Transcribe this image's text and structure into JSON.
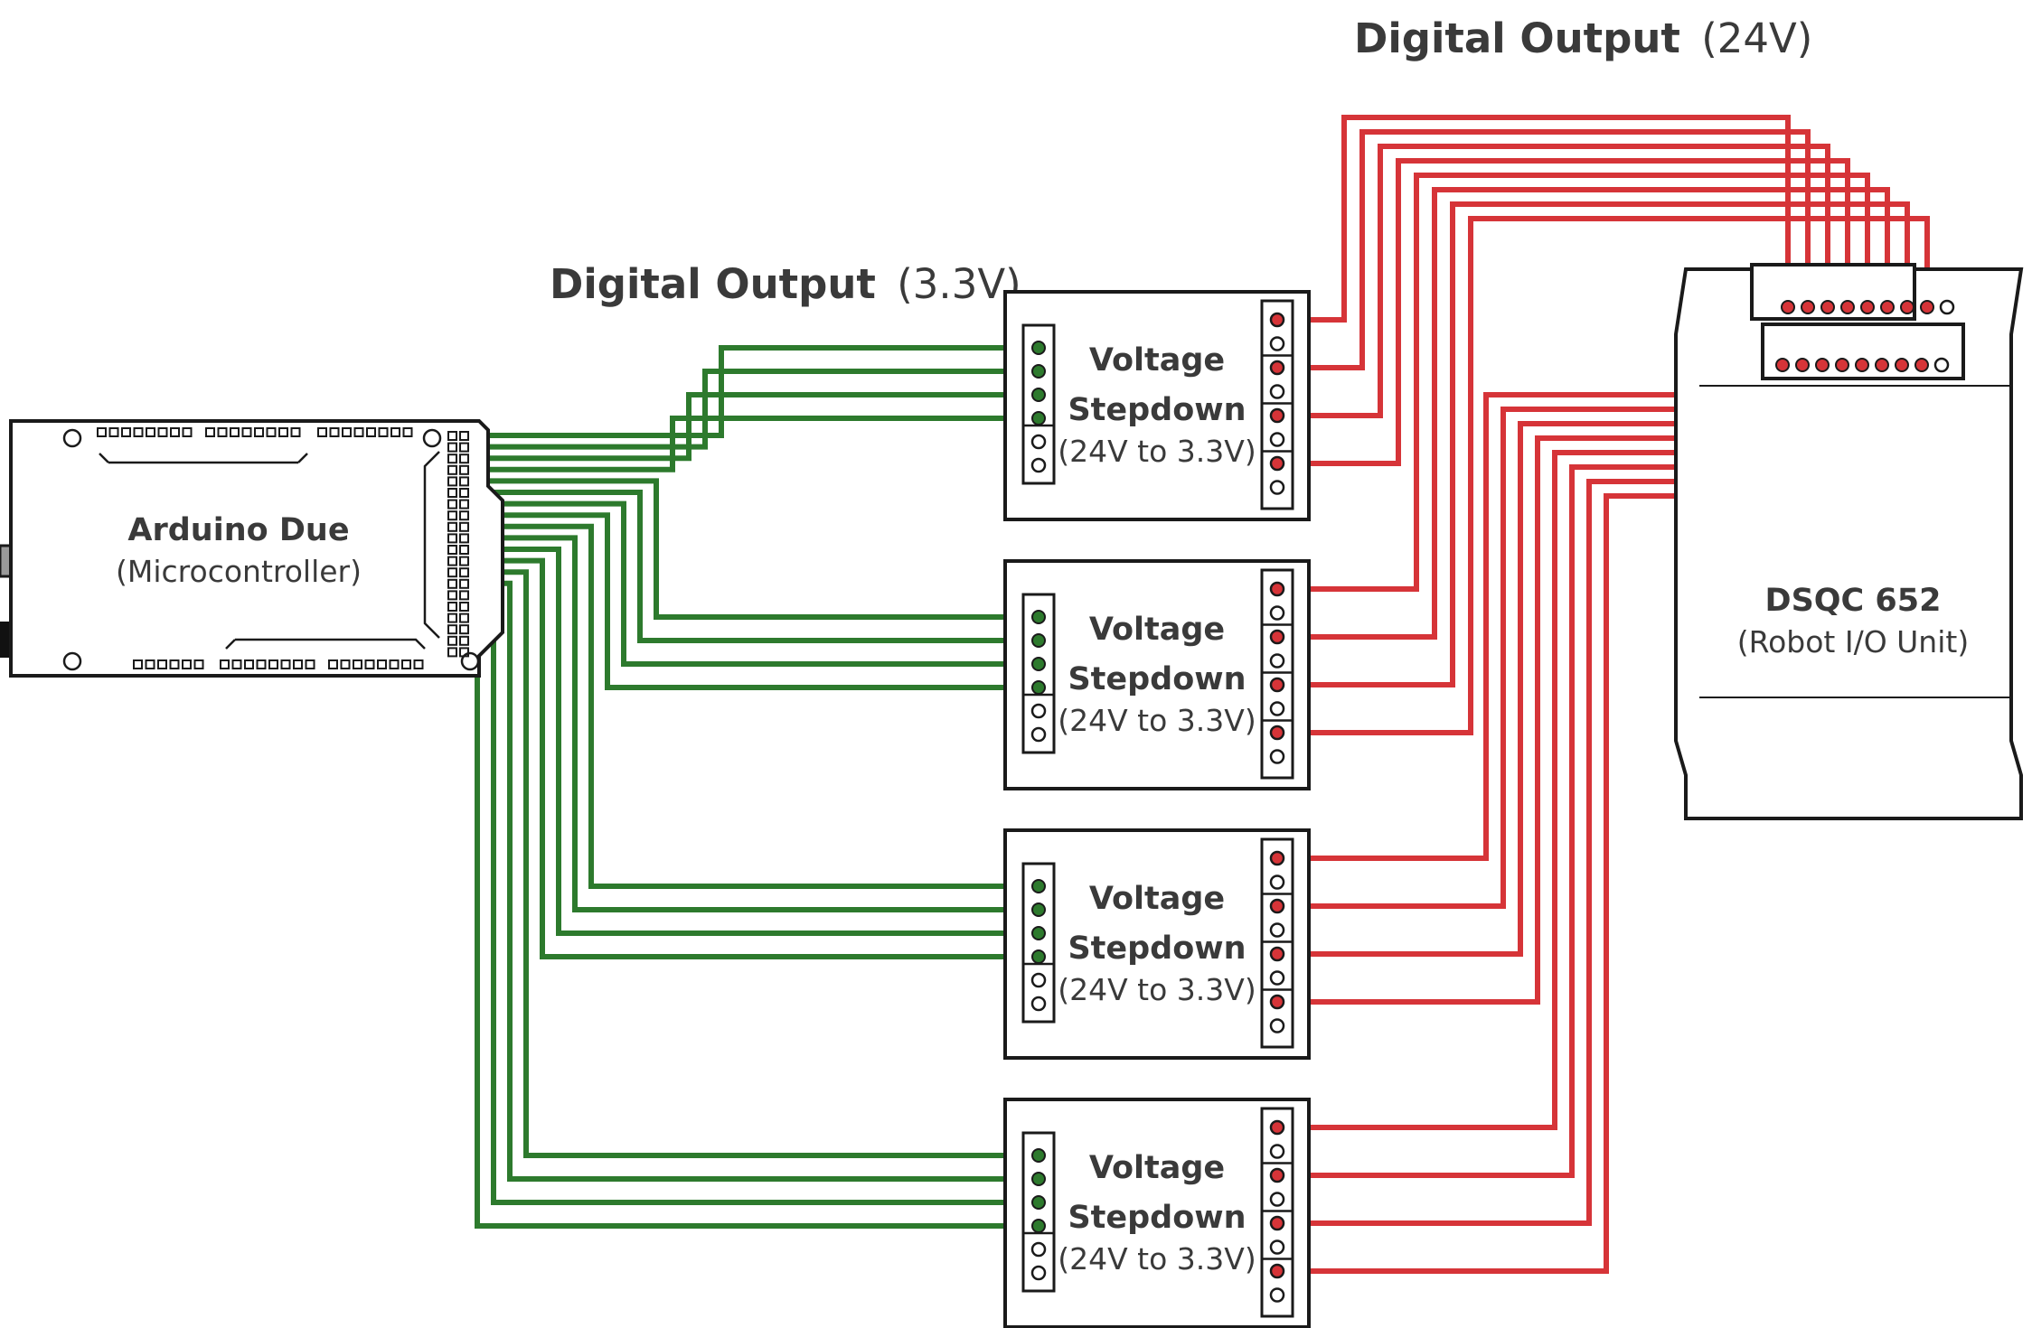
{
  "headings": {
    "low": {
      "bold": "Digital Output",
      "normal": "(3.3V)"
    },
    "high": {
      "bold": "Digital Output",
      "normal": "(24V)"
    }
  },
  "arduino": {
    "name": "Arduino Due",
    "role": "(Microcontroller)"
  },
  "stepdown": {
    "line1": "Voltage",
    "line2": "Stepdown",
    "line3": "(24V to 3.3V)"
  },
  "dsqc": {
    "name": "DSQC 652",
    "role": "(Robot I/O Unit)"
  },
  "colors": {
    "low_wire": "#2d7a2d",
    "high_wire": "#d63438",
    "outline": "#1a1a1a",
    "text": "#3a3a3a"
  },
  "stepdown_modules": 4,
  "wires_per_module": 4
}
